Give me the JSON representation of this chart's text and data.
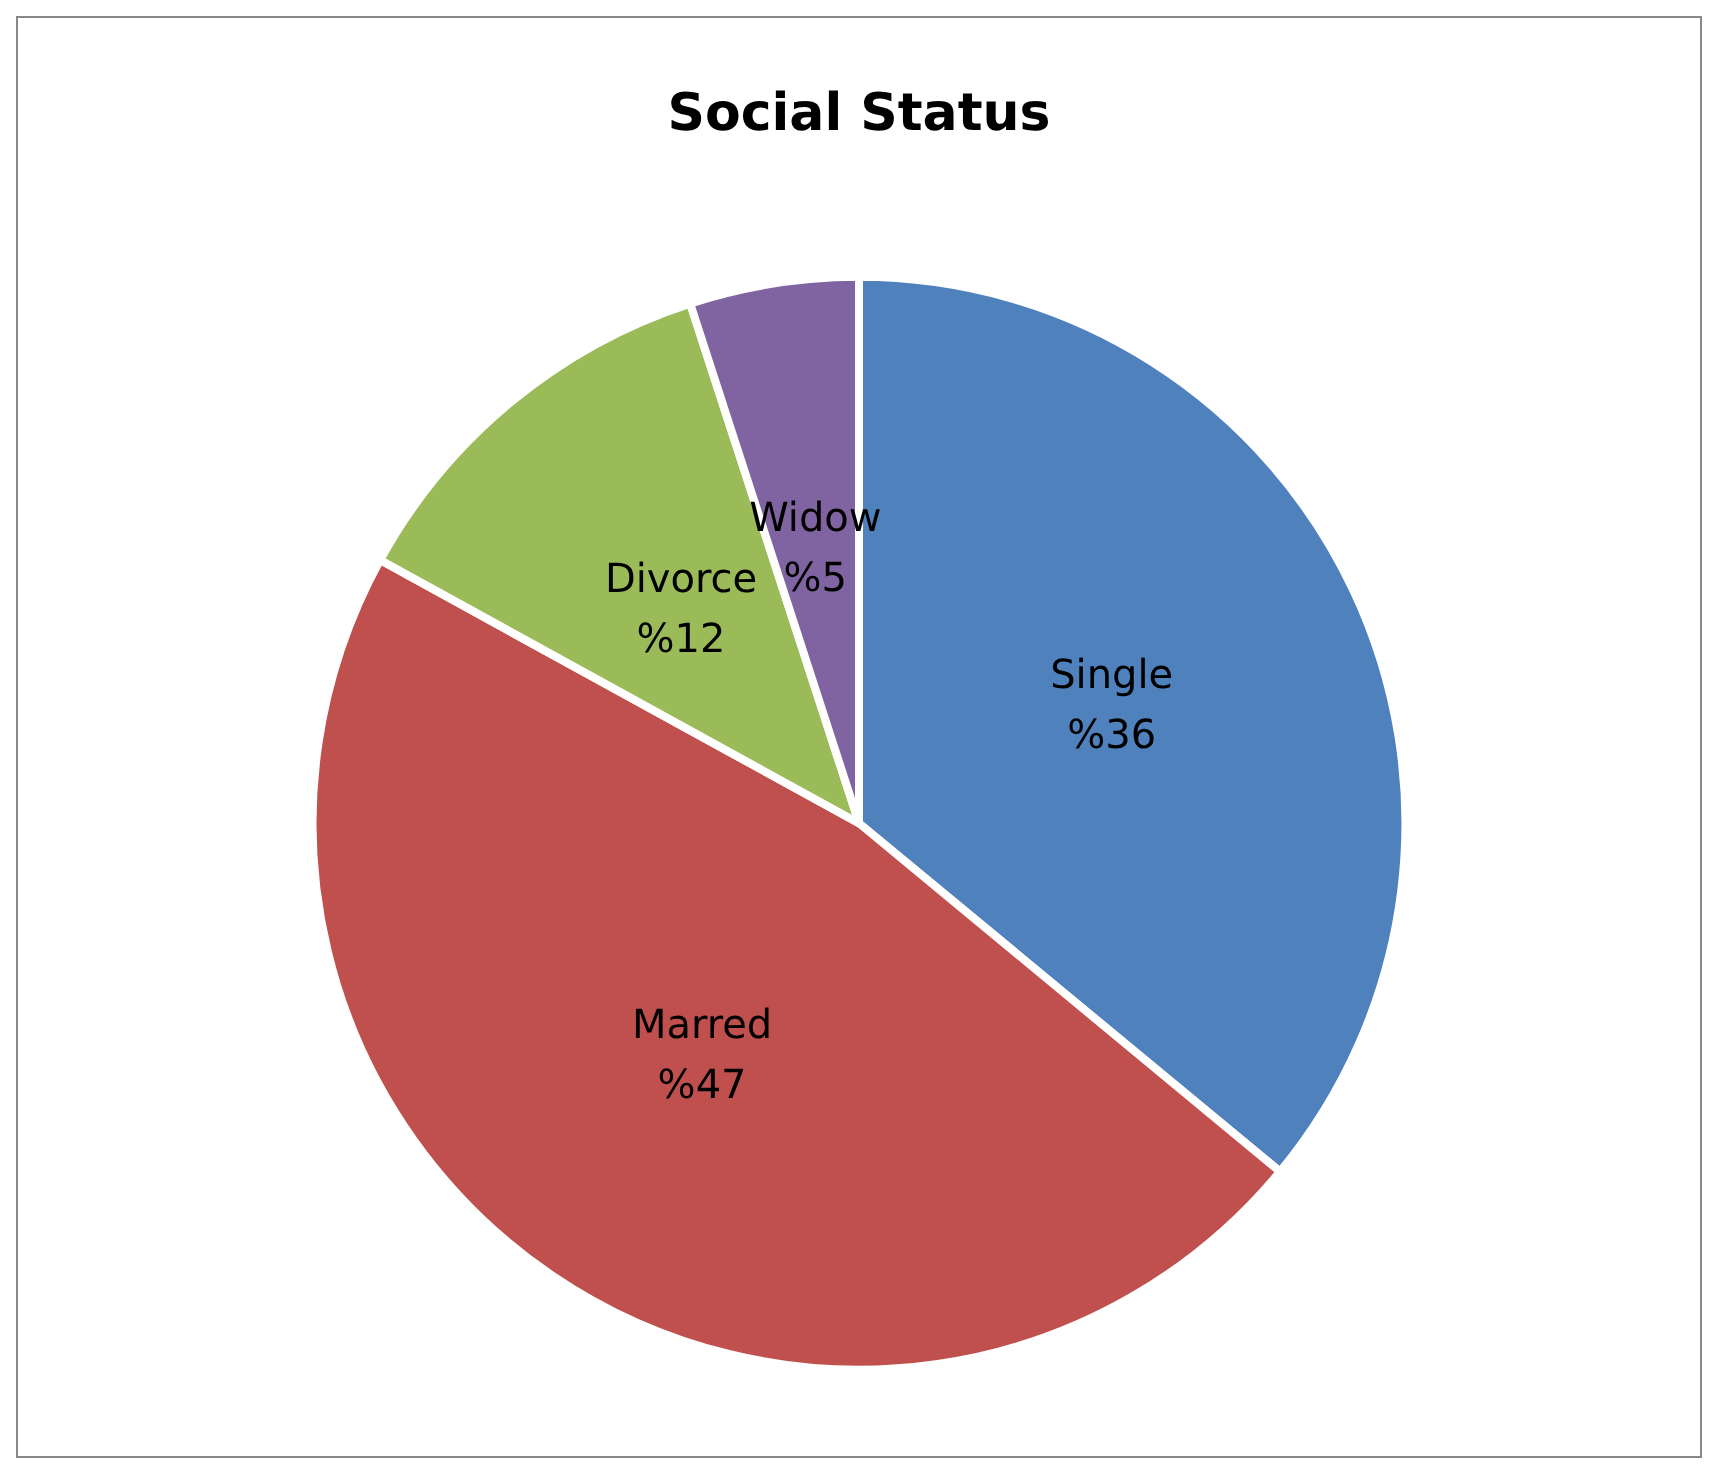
{
  "chart_data": {
    "type": "pie",
    "title": "Social Status",
    "categories": [
      "Single",
      "Marred",
      "Divorce",
      "Widow"
    ],
    "values": [
      36,
      47,
      12,
      5
    ],
    "value_labels": [
      "%36",
      "%47",
      "%12",
      "%5"
    ],
    "colors": [
      "#4f81bd",
      "#c0504d",
      "#9bbb59",
      "#8064a2"
    ],
    "legend": false
  }
}
